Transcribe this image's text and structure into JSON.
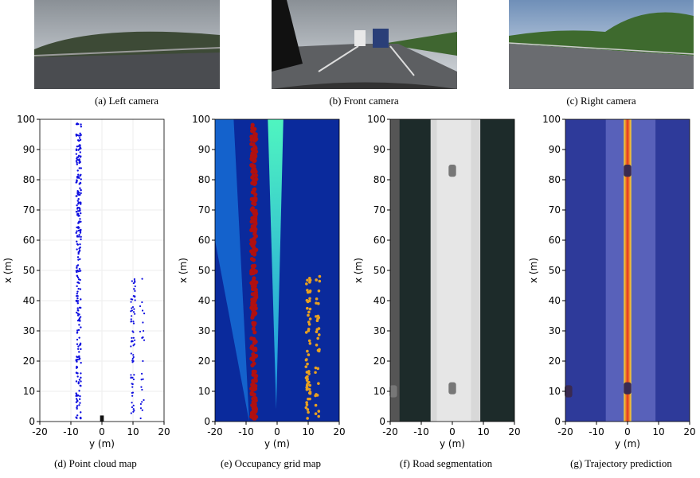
{
  "figure": {
    "cameras": [
      {
        "caption": "(a) Left camera"
      },
      {
        "caption": "(b) Front camera"
      },
      {
        "caption": "(c) Right  camera"
      }
    ],
    "panels": [
      {
        "caption": "(d) Point cloud map",
        "xlabel": "y (m)",
        "ylabel": "x (m)",
        "xlim": [
          -20,
          20
        ],
        "ylim": [
          0,
          100
        ],
        "xticks": [
          -20,
          -10,
          0,
          10,
          20
        ],
        "yticks": [
          0,
          10,
          20,
          30,
          40,
          50,
          60,
          70,
          80,
          90,
          100
        ]
      },
      {
        "caption": "(e) Occupancy grid map",
        "xlabel": "y (m)",
        "ylabel": "x (m)",
        "xlim": [
          -20,
          20
        ],
        "ylim": [
          0,
          100
        ],
        "xticks": [
          -20,
          -10,
          0,
          10,
          20
        ],
        "yticks": [
          0,
          10,
          20,
          30,
          40,
          50,
          60,
          70,
          80,
          90,
          100
        ]
      },
      {
        "caption": "(f) Road segmentation",
        "xlabel": "y (m)",
        "ylabel": "x (m)",
        "xlim": [
          -20,
          20
        ],
        "ylim": [
          0,
          100
        ],
        "xticks": [
          -20,
          -10,
          0,
          10,
          20
        ],
        "yticks": [
          0,
          10,
          20,
          30,
          40,
          50,
          60,
          70,
          80,
          90,
          100
        ]
      },
      {
        "caption": "(g) Trajectory  prediction",
        "xlabel": "y (m)",
        "ylabel": "x (m)",
        "xlim": [
          -20,
          20
        ],
        "ylim": [
          0,
          100
        ],
        "xticks": [
          -20,
          -10,
          0,
          10,
          20
        ],
        "yticks": [
          0,
          10,
          20,
          30,
          40,
          50,
          60,
          70,
          80,
          90,
          100
        ]
      }
    ]
  }
}
